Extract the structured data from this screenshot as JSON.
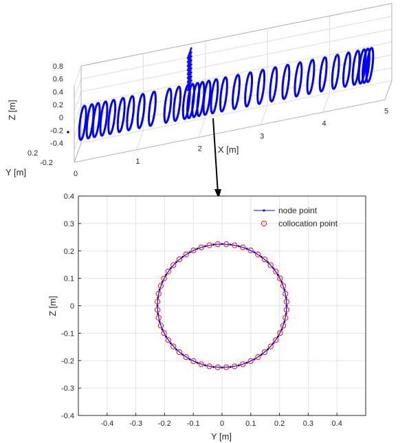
{
  "chart_data": [
    {
      "type": "line",
      "projection": "3d",
      "xlabel": "X [m]",
      "ylabel": "Y [m]",
      "zlabel": "Z [m]",
      "x_ticks": [
        "0",
        "1",
        "2",
        "3",
        "4",
        "5"
      ],
      "y_ticks": [
        "0.2",
        "-0.2"
      ],
      "z_ticks": [
        "0.8",
        "0.6",
        "0.4",
        "0.2",
        "0",
        "-0.2",
        "-0.4"
      ],
      "xlim": [
        0,
        5
      ],
      "ylim": [
        -0.2,
        0.2
      ],
      "zlim": [
        -0.4,
        0.8
      ],
      "grid": true,
      "series_color": "#0000ff",
      "ring_x_positions": [
        0.08,
        0.2,
        0.3,
        0.42,
        0.55,
        0.7,
        0.85,
        1.02,
        1.2,
        1.45,
        1.6,
        1.75,
        1.82,
        1.9,
        1.98,
        2.08,
        2.2,
        2.35,
        2.55,
        2.75,
        2.95,
        3.15,
        3.35,
        3.55,
        3.75,
        3.95,
        4.15,
        4.33,
        4.48,
        4.58,
        4.64,
        4.7
      ],
      "ring_radius": 0.22,
      "node_grid": {
        "x": 1.8,
        "y_range": [
          -0.1,
          0.1
        ],
        "z_range": [
          0.3,
          0.8
        ]
      }
    },
    {
      "type": "scatter",
      "xlabel": "Y [m]",
      "ylabel": "Z [m]",
      "xlim": [
        -0.5,
        0.5
      ],
      "ylim": [
        -0.4,
        0.4
      ],
      "x_ticks": [
        "-0.4",
        "-0.3",
        "-0.2",
        "-0.1",
        "0",
        "0.1",
        "0.2",
        "0.3",
        "0.4"
      ],
      "y_ticks": [
        "0.4",
        "0.3",
        "0.2",
        "0.1",
        "0",
        "-0.1",
        "-0.2",
        "-0.3",
        "-0.4"
      ],
      "grid": true,
      "legend_position": "top-right",
      "series": [
        {
          "name": "node point",
          "shape": "circle",
          "radius": 0.225,
          "count": 48,
          "marker": "dot-line",
          "color": "#0000ff"
        },
        {
          "name": "collocation point",
          "shape": "circle",
          "radius": 0.225,
          "count": 48,
          "marker": "open-circle",
          "color": "#ff0000"
        }
      ]
    }
  ]
}
